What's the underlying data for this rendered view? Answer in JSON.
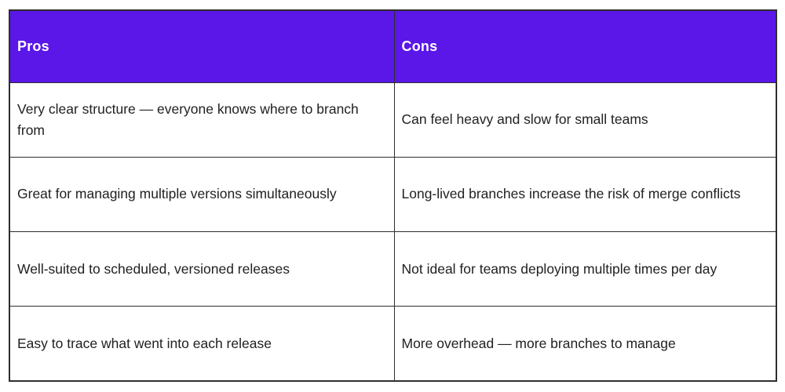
{
  "table": {
    "title": "pros-cons-comparison-table",
    "colors": {
      "header_bg": "#5a17e8",
      "header_text": "#ffffff",
      "body_text": "#212121",
      "border": "#2e2e2e",
      "page_bg": "#ffffff"
    },
    "columns": [
      {
        "header": "Pros"
      },
      {
        "header": "Cons"
      }
    ],
    "rows": [
      {
        "pro": "Very clear structure — everyone knows where to branch from",
        "con": "Can feel heavy and slow for small teams"
      },
      {
        "pro": "Great for managing multiple versions simultaneously",
        "con": "Long-lived branches increase the risk of merge conflicts"
      },
      {
        "pro": "Well-suited to scheduled, versioned releases",
        "con": "Not ideal for teams deploying multiple times per day"
      },
      {
        "pro": "Easy to trace what went into each release",
        "con": "More overhead — more branches to manage"
      }
    ]
  }
}
